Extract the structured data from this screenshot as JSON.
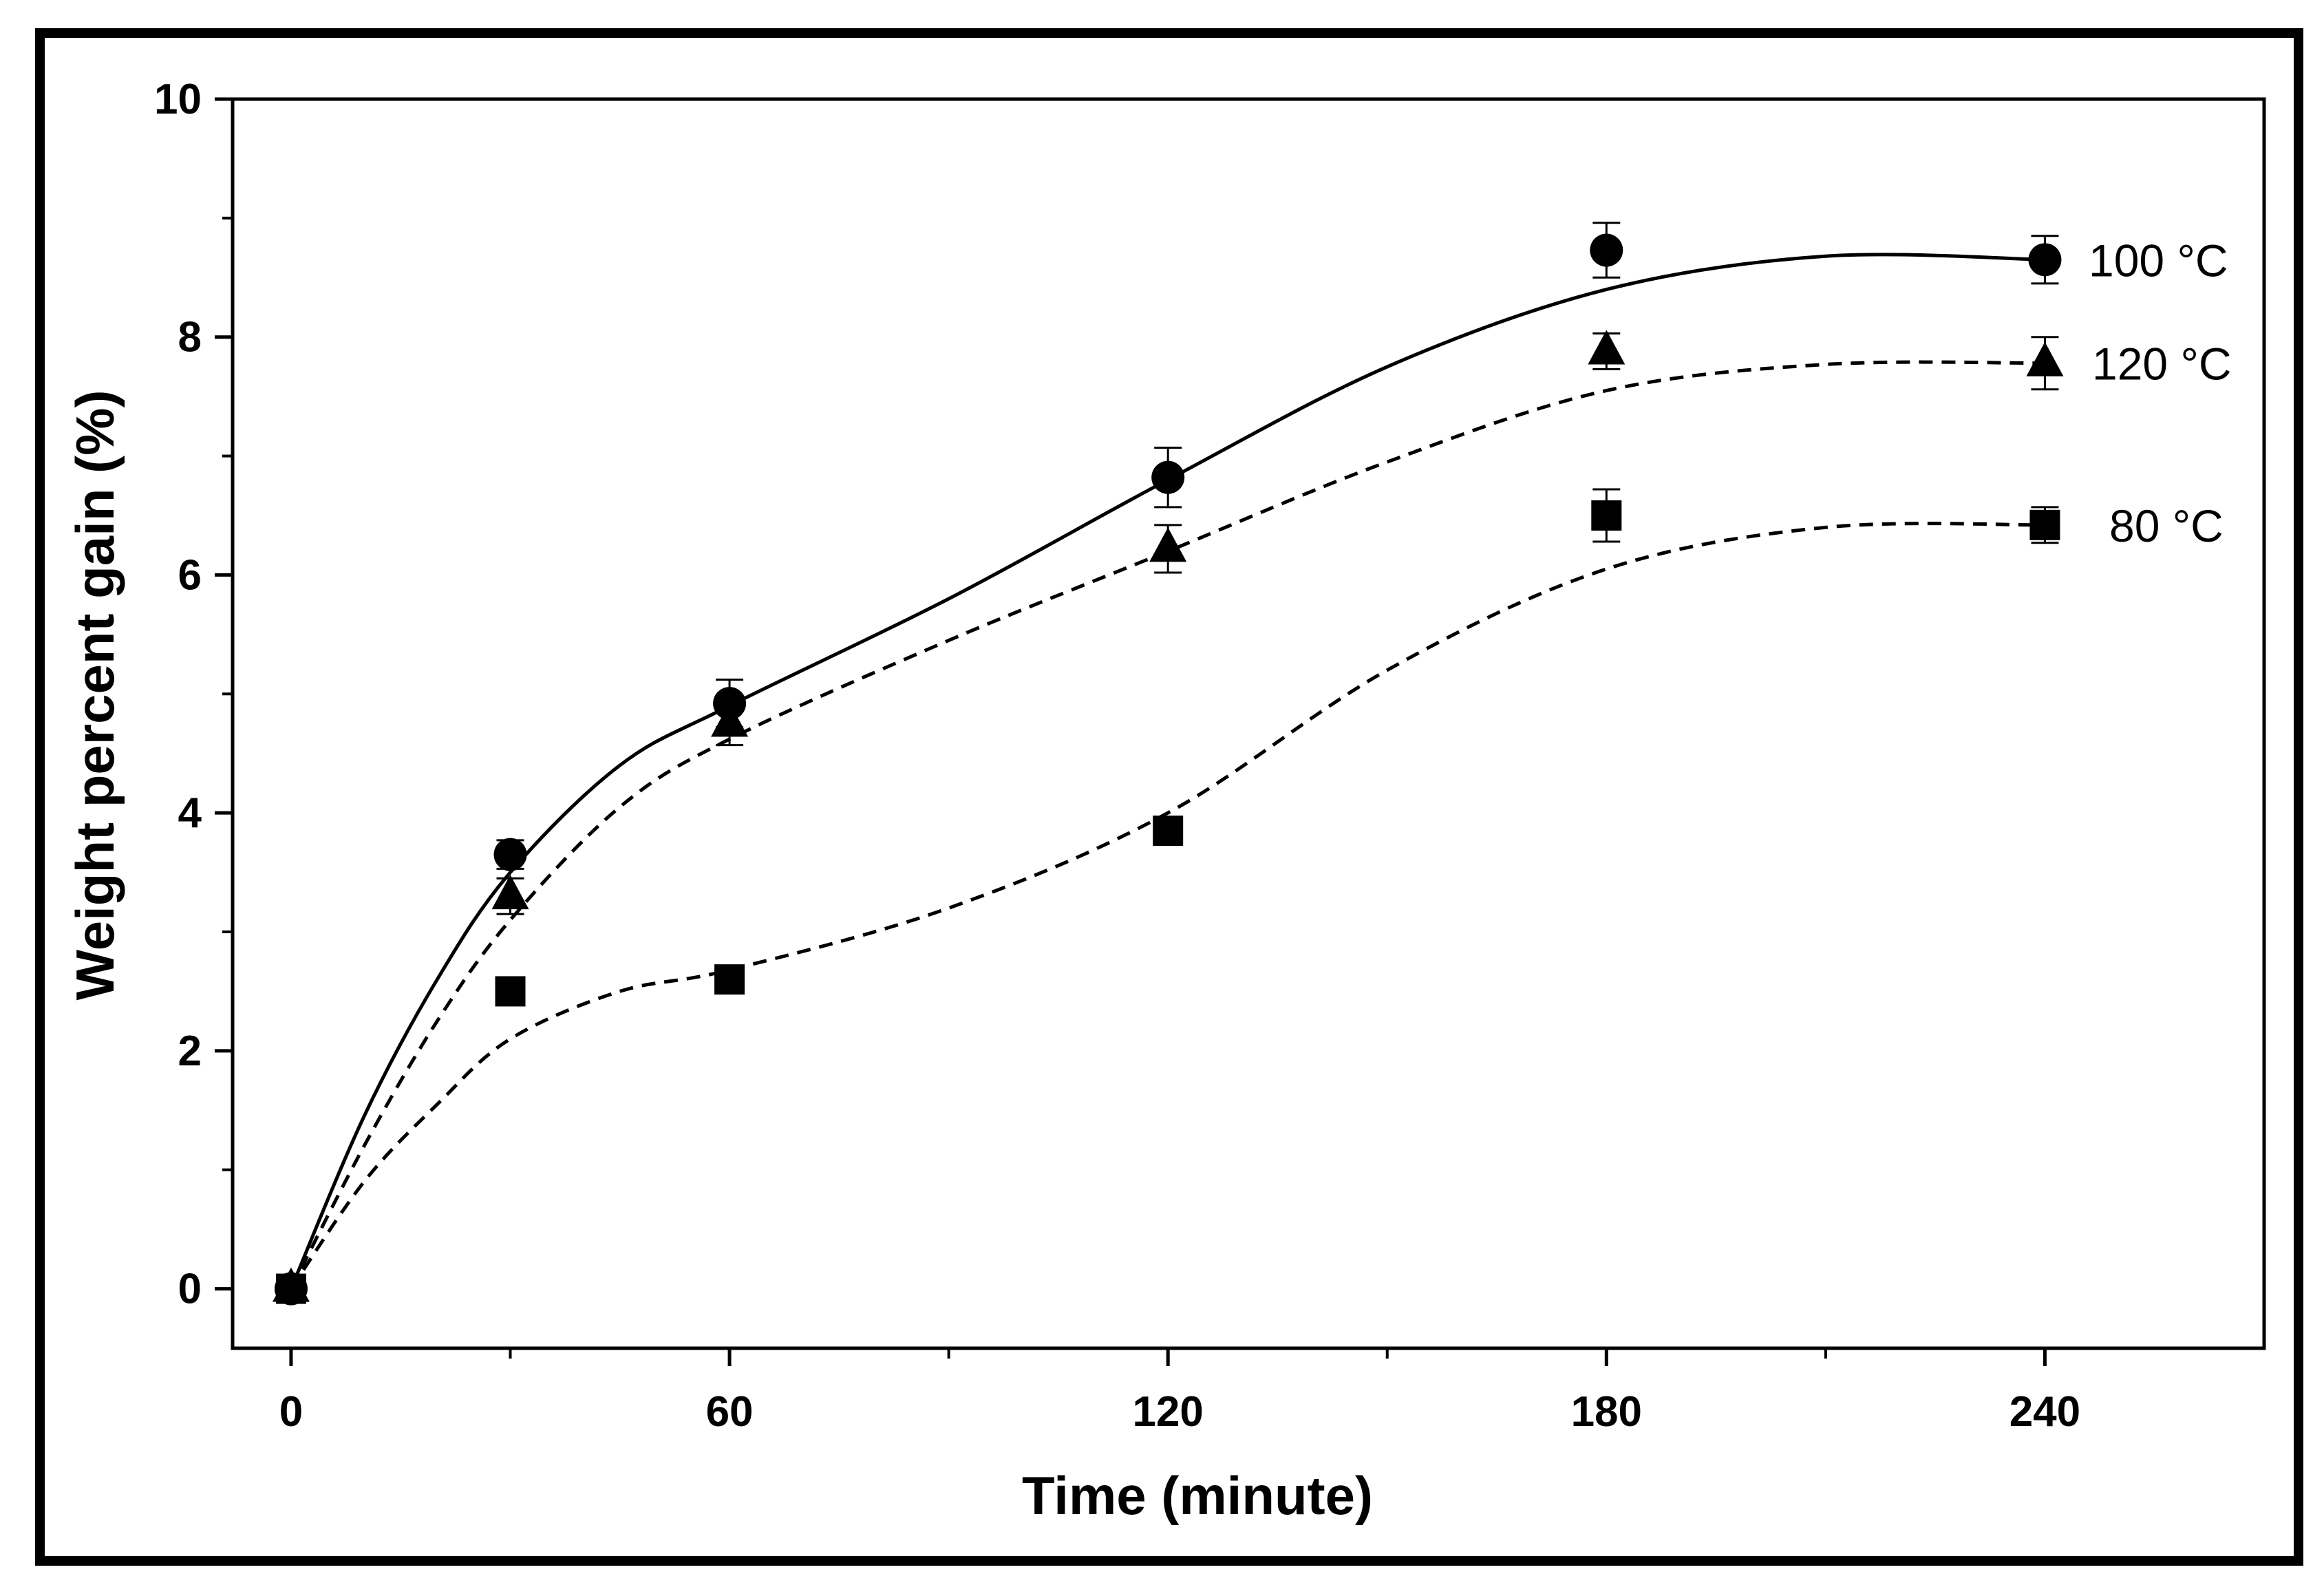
{
  "chart_data": {
    "type": "scatter",
    "title": "",
    "xlabel": "Time (minute)",
    "ylabel": "Weight percent gain (%)",
    "xlim": [
      -8,
      270
    ],
    "ylim": [
      -0.5,
      10
    ],
    "xticks": [
      0,
      60,
      120,
      180,
      240
    ],
    "xtick_labels": [
      "0",
      "60",
      "120",
      "180",
      "240"
    ],
    "yticks": [
      0,
      2,
      4,
      6,
      8,
      10
    ],
    "ytick_labels": [
      "0",
      "2",
      "4",
      "6",
      "8",
      "10"
    ],
    "grid": false,
    "legend": "labels at right end of each series",
    "series": [
      {
        "name": "100 °C",
        "label": "100 °C",
        "marker": "circle",
        "line": "solid",
        "x": [
          0,
          30,
          60,
          120,
          180,
          240
        ],
        "values": [
          0.0,
          3.65,
          4.92,
          6.82,
          8.73,
          8.65
        ],
        "errors": [
          0.0,
          0.12,
          0.2,
          0.25,
          0.23,
          0.2
        ],
        "fit": [
          [
            0,
            0.0
          ],
          [
            10,
            1.45
          ],
          [
            20,
            2.6
          ],
          [
            30,
            3.5
          ],
          [
            45,
            4.4
          ],
          [
            60,
            4.9
          ],
          [
            90,
            5.8
          ],
          [
            120,
            6.8
          ],
          [
            150,
            7.75
          ],
          [
            180,
            8.4
          ],
          [
            210,
            8.68
          ],
          [
            240,
            8.65
          ]
        ]
      },
      {
        "name": "120 °C",
        "label": "120 °C",
        "marker": "triangle",
        "line": "dashed",
        "x": [
          0,
          30,
          60,
          120,
          180,
          240
        ],
        "values": [
          0.0,
          3.3,
          4.75,
          6.22,
          7.88,
          7.78
        ],
        "errors": [
          0.0,
          0.15,
          0.18,
          0.2,
          0.15,
          0.22
        ],
        "fit": [
          [
            0,
            0.0
          ],
          [
            10,
            1.2
          ],
          [
            20,
            2.25
          ],
          [
            30,
            3.1
          ],
          [
            45,
            4.05
          ],
          [
            60,
            4.62
          ],
          [
            90,
            5.45
          ],
          [
            120,
            6.2
          ],
          [
            150,
            6.95
          ],
          [
            180,
            7.55
          ],
          [
            210,
            7.77
          ],
          [
            240,
            7.78
          ]
        ]
      },
      {
        "name": "80 °C",
        "label": "80 °C",
        "marker": "square",
        "line": "dashed",
        "x": [
          0,
          30,
          60,
          120,
          180,
          240
        ],
        "values": [
          0.0,
          2.5,
          2.6,
          3.85,
          6.5,
          6.42
        ],
        "errors": [
          0.0,
          0.0,
          0.0,
          0.0,
          0.22,
          0.15
        ],
        "fit": [
          [
            0,
            0.0
          ],
          [
            10,
            0.9
          ],
          [
            20,
            1.55
          ],
          [
            30,
            2.1
          ],
          [
            45,
            2.5
          ],
          [
            60,
            2.68
          ],
          [
            90,
            3.2
          ],
          [
            120,
            4.0
          ],
          [
            150,
            5.2
          ],
          [
            180,
            6.05
          ],
          [
            210,
            6.4
          ],
          [
            240,
            6.42
          ]
        ]
      }
    ]
  }
}
